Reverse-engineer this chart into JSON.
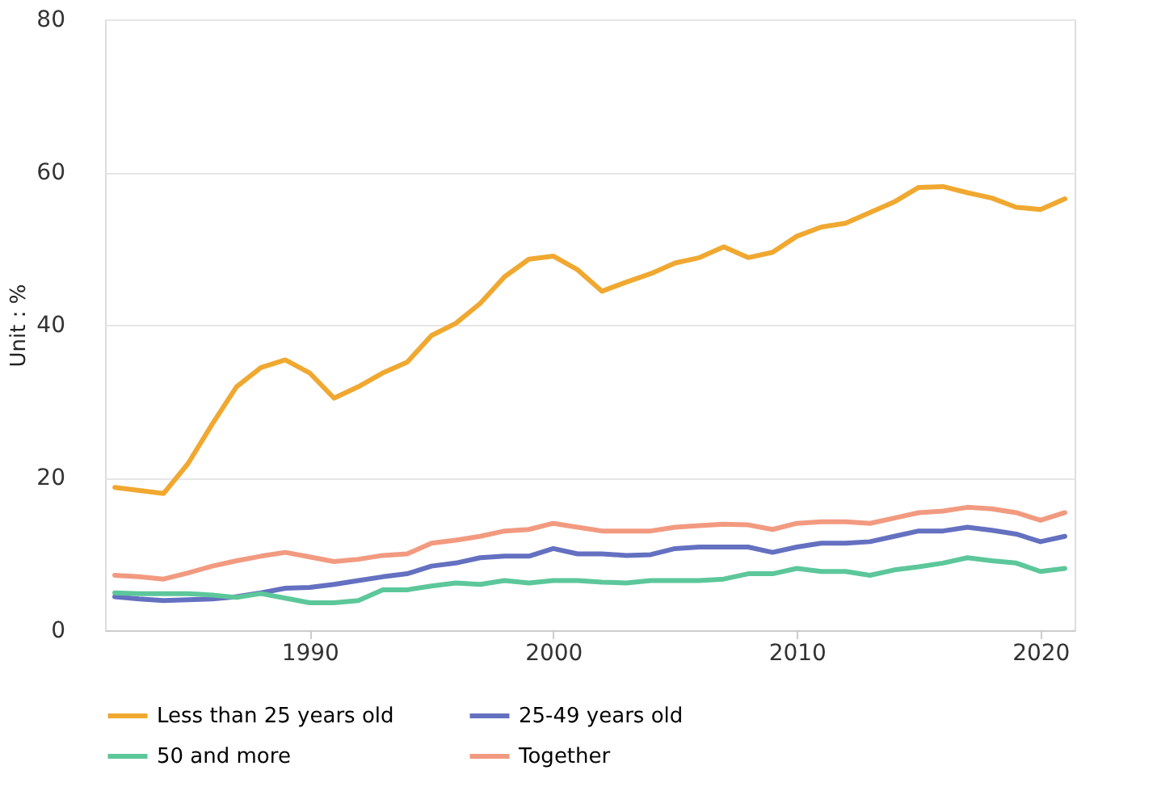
{
  "chart_data": {
    "type": "line",
    "ylabel": "Unit : %",
    "x": [
      1982,
      1983,
      1984,
      1985,
      1986,
      1987,
      1988,
      1989,
      1990,
      1991,
      1992,
      1993,
      1994,
      1995,
      1996,
      1997,
      1998,
      1999,
      2000,
      2001,
      2002,
      2003,
      2004,
      2005,
      2006,
      2007,
      2008,
      2009,
      2010,
      2011,
      2012,
      2013,
      2014,
      2015,
      2016,
      2017,
      2018,
      2019,
      2020,
      2021
    ],
    "series": [
      {
        "name": "Less than 25 years old",
        "color": "#f0a830",
        "values": [
          18.7,
          18.3,
          17.9,
          21.8,
          27.0,
          31.9,
          34.4,
          35.4,
          33.7,
          30.4,
          31.9,
          33.7,
          35.1,
          38.6,
          40.2,
          42.8,
          46.3,
          48.6,
          49.0,
          47.2,
          44.4,
          45.6,
          46.7,
          48.1,
          48.8,
          50.2,
          48.8,
          49.5,
          51.6,
          52.8,
          53.3,
          54.7,
          56.1,
          58.0,
          58.1,
          57.3,
          56.6,
          55.4,
          55.1,
          56.5
        ]
      },
      {
        "name": "25-49 years old",
        "color": "#6470c0",
        "values": [
          4.4,
          4.1,
          3.9,
          4.0,
          4.1,
          4.4,
          4.9,
          5.5,
          5.6,
          6.0,
          6.5,
          7.0,
          7.4,
          8.4,
          8.8,
          9.5,
          9.7,
          9.7,
          10.7,
          10.0,
          10.0,
          9.8,
          9.9,
          10.7,
          10.9,
          10.9,
          10.9,
          10.2,
          10.9,
          11.4,
          11.4,
          11.6,
          12.3,
          13.0,
          13.0,
          13.5,
          13.1,
          12.6,
          11.6,
          12.3
        ]
      },
      {
        "name": "50 and more",
        "color": "#5cc79a",
        "values": [
          4.9,
          4.8,
          4.8,
          4.8,
          4.6,
          4.3,
          4.8,
          4.2,
          3.6,
          3.6,
          3.9,
          5.3,
          5.3,
          5.8,
          6.2,
          6.0,
          6.5,
          6.2,
          6.5,
          6.5,
          6.3,
          6.2,
          6.5,
          6.5,
          6.5,
          6.7,
          7.4,
          7.4,
          8.1,
          7.7,
          7.7,
          7.2,
          7.9,
          8.3,
          8.8,
          9.5,
          9.1,
          8.8,
          7.7,
          8.1
        ]
      },
      {
        "name": "Together",
        "color": "#f29a80",
        "values": [
          7.2,
          7.0,
          6.7,
          7.5,
          8.4,
          9.1,
          9.7,
          10.2,
          9.6,
          9.0,
          9.3,
          9.8,
          10.0,
          11.4,
          11.8,
          12.3,
          13.0,
          13.2,
          14.0,
          13.5,
          13.0,
          13.0,
          13.0,
          13.5,
          13.7,
          13.9,
          13.8,
          13.2,
          14.0,
          14.2,
          14.2,
          14.0,
          14.7,
          15.4,
          15.6,
          16.1,
          15.9,
          15.4,
          14.4,
          15.4
        ]
      }
    ],
    "xlim": [
      1981.6,
      2021.4
    ],
    "xticks": [
      1990,
      2000,
      2010,
      2020
    ],
    "ylim": [
      0,
      80
    ],
    "yticks": [
      0,
      20,
      40,
      60,
      80
    ],
    "grid": "y",
    "legend": "bottom",
    "line_style": "solid",
    "marker": "none"
  }
}
